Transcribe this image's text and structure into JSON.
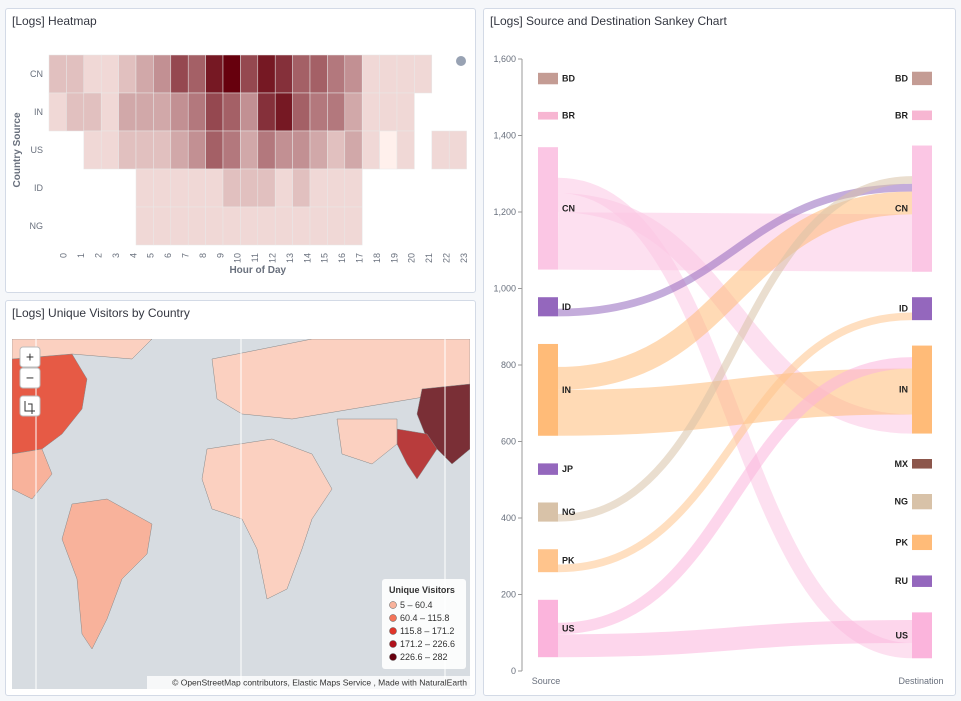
{
  "heatmap": {
    "title": "[Logs] Heatmap",
    "x_label": "Hour of Day",
    "y_label": "Country Source",
    "hours": [
      "0",
      "1",
      "2",
      "3",
      "4",
      "5",
      "6",
      "7",
      "8",
      "9",
      "10",
      "11",
      "12",
      "13",
      "14",
      "15",
      "16",
      "17",
      "18",
      "19",
      "20",
      "21",
      "22",
      "23"
    ],
    "countries": [
      "CN",
      "IN",
      "US",
      "ID",
      "NG"
    ],
    "values": [
      [
        2,
        2,
        1,
        1,
        2,
        3,
        4,
        7,
        6,
        9,
        10,
        7,
        9,
        8,
        6,
        6,
        5,
        4,
        1,
        1,
        1,
        1,
        null,
        null
      ],
      [
        1,
        2,
        2,
        1,
        3,
        3,
        3,
        4,
        5,
        7,
        6,
        4,
        8,
        9,
        6,
        5,
        5,
        3,
        1,
        1,
        1,
        null,
        null,
        null
      ],
      [
        null,
        null,
        1,
        1,
        2,
        2,
        2,
        3,
        4,
        6,
        5,
        3,
        5,
        4,
        4,
        3,
        2,
        3,
        1,
        0,
        1,
        null,
        1,
        1
      ],
      [
        null,
        null,
        null,
        null,
        null,
        1,
        1,
        1,
        1,
        1,
        2,
        2,
        2,
        1,
        2,
        1,
        1,
        1,
        null,
        null,
        null,
        null,
        null,
        null
      ],
      [
        null,
        null,
        null,
        null,
        null,
        1,
        1,
        1,
        1,
        1,
        1,
        1,
        1,
        1,
        1,
        1,
        1,
        1,
        null,
        null,
        null,
        null,
        null,
        null
      ]
    ]
  },
  "map": {
    "title": "[Logs] Unique Visitors by Country",
    "zoom_in": "+",
    "zoom_out": "−",
    "legend": {
      "title": "Unique Visitors",
      "items": [
        {
          "label": "5 – 60.4",
          "color": "#f8b29b"
        },
        {
          "label": "60.4 – 115.8",
          "color": "#f47459"
        },
        {
          "label": "115.8 – 171.2",
          "color": "#e0352a"
        },
        {
          "label": "171.2 – 226.6",
          "color": "#b0121b"
        },
        {
          "label": "226.6 – 282",
          "color": "#67000d"
        }
      ]
    },
    "attribution": "© OpenStreetMap contributors, Elastic Maps Service , Made with NaturalEarth"
  },
  "sankey": {
    "title": "[Logs] Source and Destination Sankey Chart",
    "source_label": "Source",
    "destination_label": "Destination",
    "ylim": [
      0,
      1600
    ],
    "yticks": [
      0,
      {
        "value": 200,
        "label": "200"
      },
      400,
      600,
      800,
      {
        "value": 1000,
        "label": "1,000"
      },
      {
        "value": 1200,
        "label": "1,200"
      },
      {
        "value": 1400,
        "label": "1,400"
      },
      {
        "value": 1600,
        "label": "1,600"
      }
    ],
    "sources": [
      {
        "name": "US",
        "value": 150,
        "color": "#fbb4dc"
      },
      {
        "name": "PK",
        "value": 60,
        "color": "#ffc48c"
      },
      {
        "name": "NG",
        "value": 50,
        "color": "#d8c2a8"
      },
      {
        "name": "JP",
        "value": 30,
        "color": "#9467bd"
      },
      {
        "name": "IN",
        "value": 240,
        "color": "#ffbb78"
      },
      {
        "name": "ID",
        "value": 50,
        "color": "#9467bd"
      },
      {
        "name": "CN",
        "value": 320,
        "color": "#fbc6e4"
      },
      {
        "name": "BR",
        "value": 20,
        "color": "#f7b6d2"
      },
      {
        "name": "BD",
        "value": 30,
        "color": "#c49c94"
      }
    ],
    "destinations": [
      {
        "name": "US",
        "value": 120,
        "color": "#fbb4dc"
      },
      {
        "name": "RU",
        "value": 30,
        "color": "#9467bd"
      },
      {
        "name": "PK",
        "value": 40,
        "color": "#ffbb78"
      },
      {
        "name": "NG",
        "value": 40,
        "color": "#d8c2a8"
      },
      {
        "name": "MX",
        "value": 25,
        "color": "#8c564b"
      },
      {
        "name": "IN",
        "value": 230,
        "color": "#ffbb78"
      },
      {
        "name": "ID",
        "value": 60,
        "color": "#9467bd"
      },
      {
        "name": "CN",
        "value": 330,
        "color": "#fbc6e4"
      },
      {
        "name": "BR",
        "value": 25,
        "color": "#f7b6d2"
      },
      {
        "name": "BD",
        "value": 35,
        "color": "#c49c94"
      }
    ],
    "links": [
      {
        "source": "CN",
        "target": "CN",
        "value": 150
      },
      {
        "source": "CN",
        "target": "IN",
        "value": 50
      },
      {
        "source": "CN",
        "target": "US",
        "value": 40
      },
      {
        "source": "IN",
        "target": "IN",
        "value": 120
      },
      {
        "source": "IN",
        "target": "CN",
        "value": 60
      },
      {
        "source": "US",
        "target": "US",
        "value": 60
      },
      {
        "source": "US",
        "target": "IN",
        "value": 30
      },
      {
        "source": "ID",
        "target": "CN",
        "value": 20
      },
      {
        "source": "PK",
        "target": "ID",
        "value": 20
      },
      {
        "source": "NG",
        "target": "CN",
        "value": 20
      }
    ]
  }
}
